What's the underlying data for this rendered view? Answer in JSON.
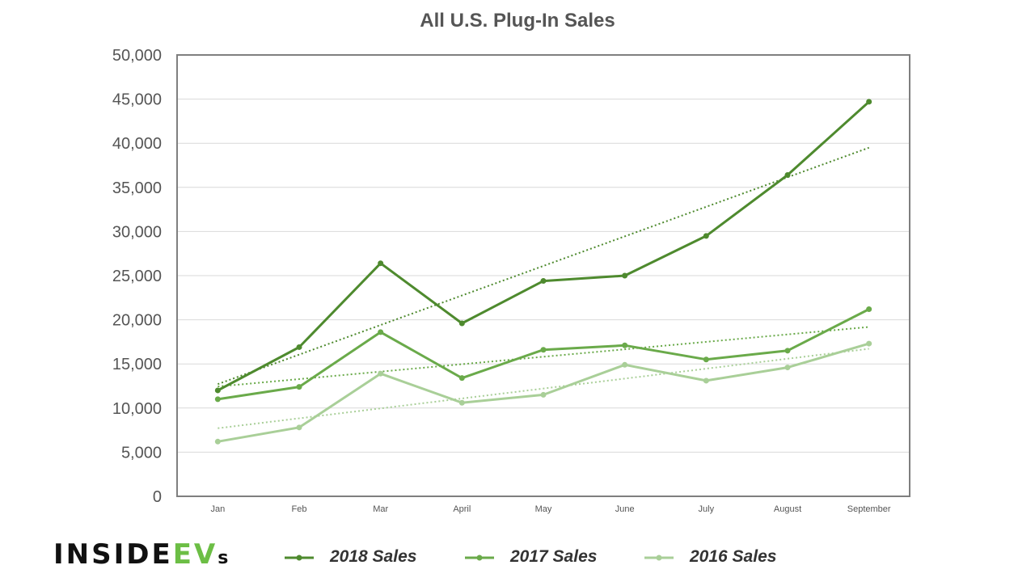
{
  "logo": {
    "text_main": "INSIDE",
    "text_accent": "EV",
    "text_suffix": "s"
  },
  "colors": {
    "s2018": "#4e8a2e",
    "s2017": "#6aaa4a",
    "s2016": "#a9cf98",
    "grid": "#d9d9d9",
    "frame": "#7f7f7f"
  },
  "chart_data": {
    "type": "line",
    "title": "All U.S. Plug-In Sales",
    "xlabel": "",
    "ylabel": "",
    "categories": [
      "Jan",
      "Feb",
      "Mar",
      "April",
      "May",
      "June",
      "July",
      "August",
      "September"
    ],
    "ylim": [
      0,
      50000
    ],
    "yticks": [
      0,
      5000,
      10000,
      15000,
      20000,
      25000,
      30000,
      35000,
      40000,
      45000,
      50000
    ],
    "ytick_labels": [
      "0",
      "5,000",
      "10,000",
      "15,000",
      "20,000",
      "25,000",
      "30,000",
      "35,000",
      "40,000",
      "45,000",
      "50,000"
    ],
    "grid": true,
    "legend_position": "bottom",
    "trendlines": "linear, dotted, one per series",
    "series": [
      {
        "name": "2018 Sales",
        "color": "#4e8a2e",
        "values": [
          12000,
          16900,
          26400,
          19600,
          24400,
          25000,
          29500,
          36400,
          44700
        ]
      },
      {
        "name": "2017 Sales",
        "color": "#6aaa4a",
        "values": [
          11000,
          12400,
          18600,
          13400,
          16600,
          17100,
          15500,
          16500,
          21200
        ]
      },
      {
        "name": "2016 Sales",
        "color": "#a9cf98",
        "values": [
          6200,
          7800,
          13900,
          10600,
          11500,
          14900,
          13100,
          14600,
          17300
        ]
      }
    ]
  }
}
